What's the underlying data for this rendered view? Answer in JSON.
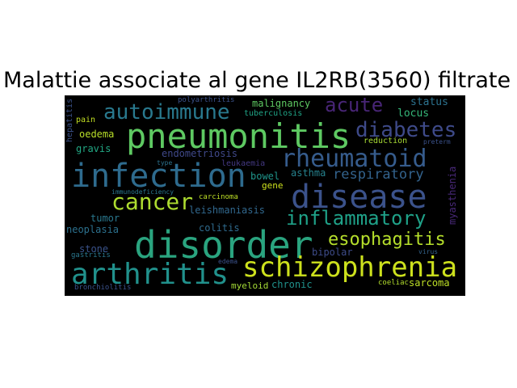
{
  "title": "Malattie associate al gene IL2RB(3560) filtrate",
  "words": {
    "disorder": "disorder",
    "infection": "infection",
    "pneumonitis": "pneumonitis",
    "disease": "disease",
    "schizophrenia": "schizophrenia",
    "arthritis": "arthritis",
    "autoimmune": "autoimmune",
    "rheumatoid": "rheumatoid",
    "diabetes": "diabetes",
    "cancer": "cancer",
    "inflammatory": "inflammatory",
    "esophagitis": "esophagitis",
    "acute": "acute",
    "respiratory": "respiratory",
    "malignancy": "malignancy",
    "status": "status",
    "locus": "locus",
    "polyarthritis": "polyarthritis",
    "tuberculosis": "tuberculosis",
    "hepatitis": "hepatitis",
    "oedema": "oedema",
    "pain": "pain",
    "gravis": "gravis",
    "endometriosis": "endometriosis",
    "type": "type",
    "leukaemia": "leukaemia",
    "bowel": "bowel",
    "asthma": "asthma",
    "gene": "gene",
    "immunodeficiency": "immunodeficiency",
    "carcinoma": "carcinoma",
    "leishmaniasis": "leishmaniasis",
    "tumor": "tumor",
    "neoplasia": "neoplasia",
    "colitis": "colitis",
    "myasthenia": "myasthenia",
    "stone": "stone",
    "gastritis": "gastritis",
    "bipolar": "bipolar",
    "edema": "edema",
    "virus": "virus",
    "bronchiolitis": "bronchiolitis",
    "myeloid": "myeloid",
    "chronic": "chronic",
    "coeliac": "coeliac",
    "sarcoma": "sarcoma",
    "reduction": "reduction",
    "preterm": "preterm"
  }
}
